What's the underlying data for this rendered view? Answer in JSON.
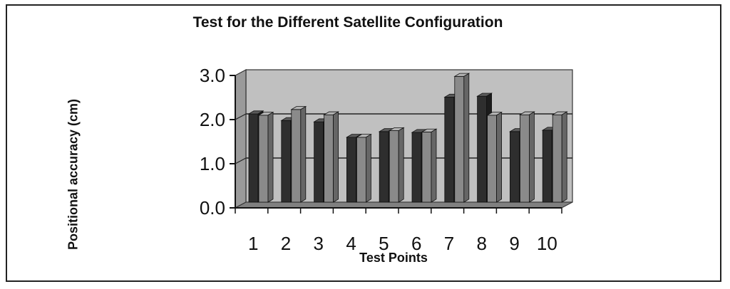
{
  "chart_data": {
    "type": "bar",
    "title": "Test for the Different Satellite  Configuration",
    "xlabel": "Test Points",
    "ylabel": "Positional accuracy (cm)",
    "categories": [
      "1",
      "2",
      "3",
      "4",
      "5",
      "6",
      "7",
      "8",
      "9",
      "10"
    ],
    "ylim": [
      0,
      3
    ],
    "y_ticks": [
      "0.0",
      "1.0",
      "2.0",
      "3.0"
    ],
    "grid": true,
    "legend": "none",
    "series": [
      {
        "values": [
          2.0,
          1.85,
          1.82,
          1.47,
          1.6,
          1.58,
          2.38,
          2.4,
          1.6,
          1.63
        ],
        "color": "#3a3a3a"
      },
      {
        "values": [
          1.97,
          2.1,
          1.98,
          1.47,
          1.62,
          1.59,
          2.85,
          1.97,
          1.98,
          1.98
        ],
        "color": "#8c8c8c"
      }
    ]
  }
}
